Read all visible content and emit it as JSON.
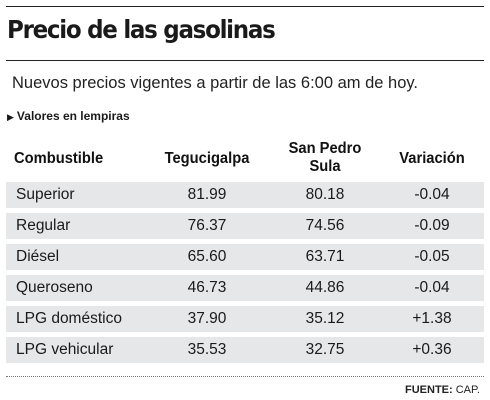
{
  "chart_data": {
    "type": "table",
    "title": "Precio de las gasolinas",
    "subtitle": "Nuevos precios vigentes a partir de las 6:00 am de hoy.",
    "note": "Valores en lempiras",
    "columns": [
      "Combustible",
      "Tegucigalpa",
      "San Pedro Sula",
      "Variación"
    ],
    "rows": [
      [
        "Superior",
        "81.99",
        "80.18",
        "-0.04"
      ],
      [
        "Regular",
        "76.37",
        "74.56",
        "-0.09"
      ],
      [
        "Diésel",
        "65.60",
        "63.71",
        "-0.05"
      ],
      [
        "Queroseno",
        "46.73",
        "44.86",
        "-0.04"
      ],
      [
        "LPG doméstico",
        "37.90",
        "35.12",
        "+1.38"
      ],
      [
        "LPG vehicular",
        "35.53",
        "32.75",
        "+0.36"
      ]
    ],
    "source_label": "FUENTE:",
    "source": "CAP."
  },
  "colors": {
    "row_background": "#e6e7e8",
    "text": "#1a1a1a",
    "rule": "#222222"
  }
}
